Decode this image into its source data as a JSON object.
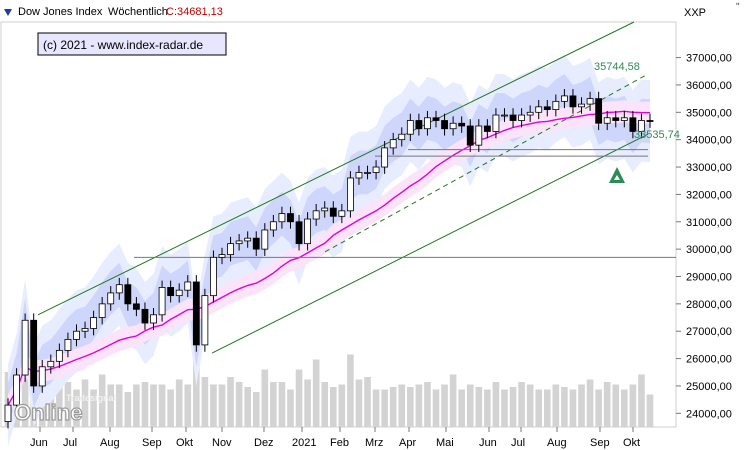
{
  "header": {
    "title": "Dow Jones Index",
    "period": "Wöchentlich",
    "close_label": "C:34681,13",
    "currency": "XXP",
    "close_icon": "close-x-icon"
  },
  "copyright": "(c) 2021 - www.index-radar.de",
  "watermark": {
    "line1": "Tradesignal",
    "line2": "Online"
  },
  "annotations": {
    "high_label": "35744,58",
    "low_label": "33535,74",
    "signal_icon": "green-triangle-up-icon"
  },
  "chart_data": {
    "type": "candlestick",
    "title": "Dow Jones Index",
    "ylim": [
      23500,
      38300
    ],
    "y_ticks": [
      "37000,00",
      "36000,00",
      "35000,00",
      "34000,00",
      "33000,00",
      "32000,00",
      "31000,00",
      "30000,00",
      "29000,00",
      "28000,00",
      "27000,00",
      "26000,00",
      "25000,00",
      "24000,00"
    ],
    "x_ticks": [
      "Jun",
      "Jul",
      "Aug",
      "Sep",
      "Okt",
      "Nov",
      "Dez",
      "2021",
      "Feb",
      "Mrz",
      "Apr",
      "Mai",
      "Jun",
      "Jul",
      "Aug",
      "Sep",
      "Okt"
    ],
    "closes": [
      24300,
      25400,
      27400,
      25000,
      25700,
      25900,
      26300,
      26700,
      27000,
      27100,
      27500,
      28000,
      28400,
      28700,
      28000,
      27800,
      27300,
      27600,
      28600,
      28300,
      28500,
      28800,
      26500,
      28300,
      29700,
      29800,
      30200,
      30300,
      30400,
      30000,
      30700,
      31000,
      31300,
      31000,
      30200,
      31100,
      31400,
      31500,
      31200,
      31400,
      32600,
      32800,
      32800,
      33000,
      33700,
      34000,
      34200,
      34700,
      34400,
      34800,
      34700,
      34400,
      34600,
      34500,
      33800,
      34500,
      34300,
      34900,
      34900,
      34700,
      34900,
      35000,
      35200,
      35100,
      35400,
      35600,
      35200,
      35300,
      35500,
      34600,
      34800,
      34700,
      34800,
      34300,
      34700,
      34680
    ],
    "volume": [
      44,
      36,
      48,
      64,
      52,
      44,
      40,
      36,
      30,
      38,
      30,
      42,
      34,
      34,
      28,
      34,
      36,
      34,
      34,
      30,
      38,
      34,
      68,
      40,
      34,
      34,
      40,
      36,
      32,
      28,
      46,
      36,
      36,
      30,
      46,
      38,
      54,
      36,
      32,
      34,
      58,
      38,
      40,
      30,
      30,
      32,
      34,
      32,
      34,
      36,
      30,
      34,
      42,
      30,
      34,
      32,
      30,
      36,
      30,
      32,
      36,
      34,
      30,
      30,
      34,
      32,
      30,
      34,
      38,
      30,
      36,
      34,
      30,
      34,
      42,
      26
    ],
    "reference_levels": {
      "high": 35744.58,
      "low": 33535.74,
      "horizontal_support": 29700,
      "horizontal_resistance": 33400
    },
    "indicators": [
      "upper trend channel",
      "lower trend channel",
      "moving average",
      "volatility bands",
      "volume"
    ],
    "grid": false,
    "axis_position": "right"
  }
}
